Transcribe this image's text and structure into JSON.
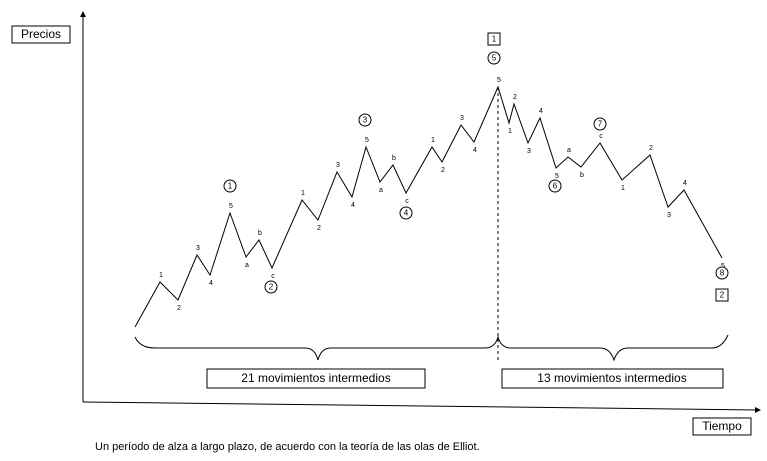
{
  "axis_labels": {
    "y": "Precios",
    "x": "Tiempo"
  },
  "wave_labels": [
    "1",
    "2",
    "3",
    "4",
    "5",
    "a",
    "b",
    "c",
    "1",
    "2",
    "3",
    "4",
    "5",
    "a",
    "b",
    "c",
    "1",
    "2",
    "3",
    "4",
    "5",
    "1",
    "2",
    "3",
    "4",
    "5",
    "a",
    "b",
    "c",
    "1",
    "2",
    "3",
    "4",
    "5"
  ],
  "circled_labels": [
    "1",
    "2",
    "3",
    "4",
    "5",
    "6",
    "7",
    "8"
  ],
  "boxed_labels": [
    "1",
    "2"
  ],
  "brackets": [
    "21 movimientos intermedios",
    "13  movimientos intermedios"
  ],
  "caption": "Un período de alza a largo plazo, de acuerdo con la teoría de las olas de Elliot."
}
